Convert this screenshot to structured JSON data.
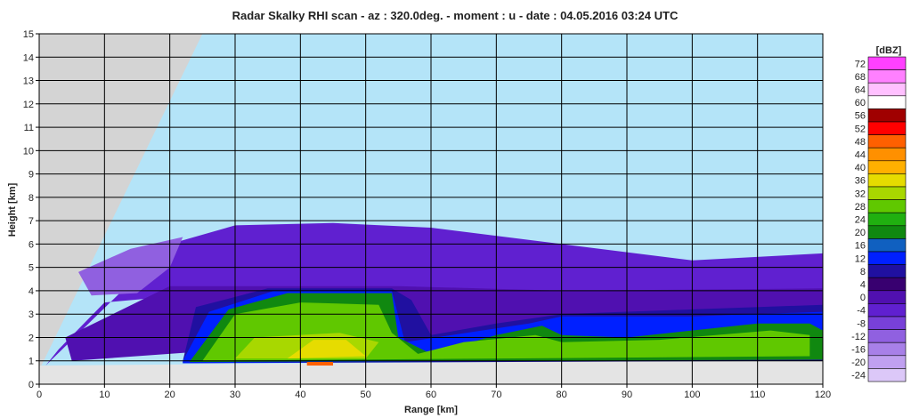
{
  "chart_data": {
    "type": "heatmap",
    "title": "Radar Skalky RHI scan  -  az : 320.0deg.  -  moment : u  -  date : 04.05.2016  03:24 UTC",
    "xlabel": "Range [km]",
    "ylabel": "Height [km]",
    "xlim": [
      0,
      120
    ],
    "ylim": [
      0,
      15
    ],
    "x_ticks": [
      0,
      10,
      20,
      30,
      40,
      50,
      60,
      70,
      80,
      90,
      100,
      110,
      120
    ],
    "y_ticks": [
      0,
      1,
      2,
      3,
      4,
      5,
      6,
      7,
      8,
      9,
      10,
      11,
      12,
      13,
      14,
      15
    ],
    "grid": true,
    "colorbar": {
      "unit": "[dBZ]",
      "levels": [
        72,
        68,
        64,
        60,
        56,
        52,
        48,
        44,
        40,
        36,
        32,
        28,
        24,
        20,
        16,
        12,
        8,
        4,
        0,
        -4,
        -8,
        -12,
        -16,
        -20,
        -24
      ],
      "colors": [
        "#ff40ff",
        "#ff80ff",
        "#ffc0ff",
        "#ffffff",
        "#a00000",
        "#ff0000",
        "#ff6000",
        "#ff9000",
        "#ffb000",
        "#e6dc00",
        "#a8d800",
        "#60c800",
        "#20b010",
        "#108810",
        "#1060c0",
        "#0020ff",
        "#2010a0",
        "#380070",
        "#5010b0",
        "#6020d0",
        "#7840d8",
        "#9060e0",
        "#a880e8",
        "#c0a0f0",
        "#dcc8f8"
      ]
    },
    "colors": {
      "no_echo": "#b4e4f8",
      "out_of_scan": "#d4d4d4",
      "below_beam": "#e4e4e4"
    },
    "echo_regions": [
      {
        "level": -4,
        "points": [
          [
            1.0,
            0.8
          ],
          [
            20,
            6.0
          ],
          [
            30,
            6.8
          ],
          [
            45,
            6.9
          ],
          [
            60,
            6.7
          ],
          [
            80,
            6.0
          ],
          [
            100,
            5.3
          ],
          [
            120,
            5.6
          ],
          [
            120,
            3.8
          ],
          [
            90,
            3.8
          ],
          [
            60,
            3.9
          ],
          [
            30,
            4.0
          ],
          [
            10,
            3.5
          ],
          [
            3,
            1.5
          ]
        ]
      },
      {
        "level": -12,
        "points": [
          [
            6,
            4.8
          ],
          [
            14,
            5.8
          ],
          [
            22,
            6.3
          ],
          [
            20,
            5.0
          ],
          [
            15,
            3.9
          ],
          [
            8,
            3.8
          ]
        ]
      },
      {
        "level": 0,
        "points": [
          [
            4,
            2.0
          ],
          [
            20,
            4.2
          ],
          [
            55,
            4.2
          ],
          [
            80,
            4.0
          ],
          [
            120,
            4.1
          ],
          [
            120,
            1.5
          ],
          [
            60,
            1.5
          ],
          [
            30,
            1.5
          ],
          [
            5,
            1.0
          ]
        ]
      },
      {
        "level": 8,
        "points": [
          [
            22,
            1.0
          ],
          [
            24,
            3.3
          ],
          [
            35,
            4.1
          ],
          [
            54,
            4.1
          ],
          [
            57,
            3.6
          ],
          [
            60,
            2.1
          ],
          [
            70,
            2.6
          ],
          [
            80,
            3.0
          ],
          [
            100,
            3.2
          ],
          [
            120,
            3.4
          ],
          [
            120,
            1.0
          ],
          [
            22,
            0.9
          ]
        ]
      },
      {
        "level": 12,
        "points": [
          [
            22,
            1.0
          ],
          [
            26,
            3.1
          ],
          [
            36,
            4.0
          ],
          [
            54,
            4.0
          ],
          [
            56,
            1.8
          ],
          [
            75,
            2.6
          ],
          [
            80,
            2.9
          ],
          [
            100,
            2.9
          ],
          [
            120,
            3.1
          ],
          [
            120,
            1.1
          ],
          [
            22,
            0.9
          ]
        ]
      },
      {
        "level": 20,
        "points": [
          [
            23,
            0.95
          ],
          [
            29,
            3.2
          ],
          [
            38,
            3.9
          ],
          [
            54,
            3.9
          ],
          [
            55,
            2.0
          ],
          [
            60,
            1.3
          ],
          [
            70,
            2.1
          ],
          [
            77,
            2.5
          ],
          [
            80,
            2.1
          ],
          [
            90,
            2.0
          ],
          [
            110,
            2.6
          ],
          [
            118,
            2.6
          ],
          [
            120,
            2.3
          ],
          [
            120,
            1.05
          ],
          [
            23,
            0.95
          ]
        ]
      },
      {
        "level": 28,
        "points": [
          [
            25,
            1.0
          ],
          [
            30,
            3.0
          ],
          [
            40,
            3.5
          ],
          [
            52,
            3.4
          ],
          [
            54,
            2.2
          ],
          [
            58,
            1.3
          ],
          [
            65,
            1.8
          ],
          [
            76,
            2.1
          ],
          [
            80,
            1.8
          ],
          [
            95,
            1.9
          ],
          [
            112,
            2.3
          ],
          [
            118,
            2.1
          ],
          [
            118,
            1.2
          ],
          [
            25,
            1.0
          ]
        ]
      },
      {
        "level": 32,
        "points": [
          [
            30,
            1.1
          ],
          [
            33,
            2.0
          ],
          [
            46,
            2.2
          ],
          [
            52,
            1.8
          ],
          [
            50,
            1.1
          ]
        ]
      },
      {
        "level": 36,
        "points": [
          [
            38,
            1.1
          ],
          [
            42,
            1.9
          ],
          [
            47,
            1.9
          ],
          [
            50,
            1.2
          ]
        ]
      },
      {
        "level": 48,
        "points": [
          [
            41,
            0.95
          ],
          [
            45,
            0.95
          ],
          [
            45,
            0.8
          ],
          [
            41,
            0.8
          ]
        ]
      }
    ]
  }
}
